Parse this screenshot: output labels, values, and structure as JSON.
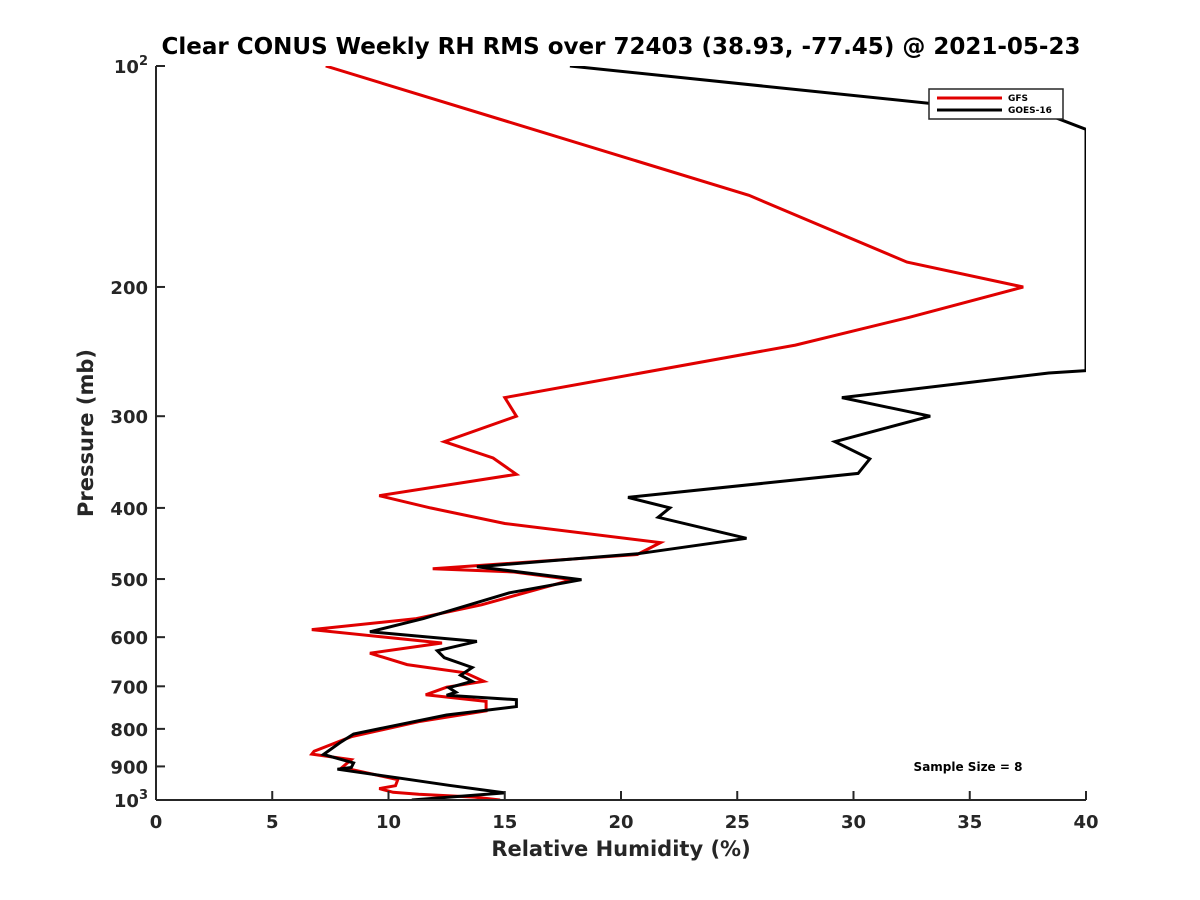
{
  "chart_data": {
    "type": "line",
    "title": "Clear CONUS Weekly RH RMS over 72403 (38.93, -77.45) @ 2021-05-23",
    "xlabel": "Relative Humidity (%)",
    "ylabel": "Pressure (mb)",
    "xlim": [
      0,
      40
    ],
    "ylim": [
      100,
      1000
    ],
    "y_scale": "log",
    "y_reversed": true,
    "x_ticks": [
      "0",
      "5",
      "10",
      "15",
      "20",
      "25",
      "30",
      "35",
      "40"
    ],
    "x_tick_values": [
      0,
      5,
      10,
      15,
      20,
      25,
      30,
      35,
      40
    ],
    "y_ticks": [
      {
        "value": 100,
        "base": "10",
        "exp": "2"
      },
      {
        "value": 200,
        "base": "200",
        "exp": ""
      },
      {
        "value": 300,
        "base": "300",
        "exp": ""
      },
      {
        "value": 400,
        "base": "400",
        "exp": ""
      },
      {
        "value": 500,
        "base": "500",
        "exp": ""
      },
      {
        "value": 600,
        "base": "600",
        "exp": ""
      },
      {
        "value": 700,
        "base": "700",
        "exp": ""
      },
      {
        "value": 800,
        "base": "800",
        "exp": ""
      },
      {
        "value": 900,
        "base": "900",
        "exp": ""
      },
      {
        "value": 1000,
        "base": "10",
        "exp": "3"
      }
    ],
    "legend_position": "top-right",
    "grid": false,
    "annotation": "Sample Size = 8",
    "series": [
      {
        "name": "GFS",
        "color": "#e00000",
        "points": [
          [
            7.3,
            100
          ],
          [
            25.5,
            150
          ],
          [
            32.3,
            185
          ],
          [
            37.3,
            200
          ],
          [
            32.4,
            220
          ],
          [
            27.5,
            240
          ],
          [
            15.0,
            283
          ],
          [
            15.5,
            300
          ],
          [
            12.4,
            325
          ],
          [
            14.5,
            342
          ],
          [
            15.5,
            360
          ],
          [
            9.6,
            385
          ],
          [
            11.8,
            400
          ],
          [
            15.0,
            420
          ],
          [
            21.7,
            446
          ],
          [
            20.7,
            463
          ],
          [
            11.9,
            484
          ],
          [
            15.4,
            489
          ],
          [
            17.9,
            501
          ],
          [
            14.0,
            542
          ],
          [
            11.2,
            566
          ],
          [
            6.7,
            586
          ],
          [
            12.3,
            611
          ],
          [
            9.2,
            631
          ],
          [
            10.8,
            654
          ],
          [
            13.3,
            671
          ],
          [
            14.1,
            689
          ],
          [
            12.5,
            702
          ],
          [
            11.6,
            719
          ],
          [
            14.2,
            734
          ],
          [
            14.2,
            756
          ],
          [
            11.3,
            782
          ],
          [
            8.4,
            820
          ],
          [
            6.8,
            858
          ],
          [
            6.7,
            866
          ],
          [
            8.4,
            881
          ],
          [
            8.0,
            903
          ],
          [
            10.4,
            938
          ],
          [
            10.3,
            956
          ],
          [
            9.6,
            965
          ],
          [
            10.2,
            976
          ],
          [
            11.3,
            982
          ],
          [
            13.7,
            991
          ],
          [
            14.8,
            1000
          ]
        ]
      },
      {
        "name": "GOES-16",
        "color": "#000000",
        "points": [
          [
            17.8,
            100
          ],
          [
            38.5,
            117
          ],
          [
            40.0,
            122
          ],
          [
            40.0,
            260
          ],
          [
            38.4,
            262
          ],
          [
            29.5,
            283
          ],
          [
            33.3,
            300
          ],
          [
            29.2,
            325
          ],
          [
            30.7,
            343
          ],
          [
            30.2,
            359
          ],
          [
            20.3,
            387
          ],
          [
            22.1,
            400
          ],
          [
            21.6,
            412
          ],
          [
            25.4,
            440
          ],
          [
            20.7,
            462
          ],
          [
            13.8,
            481
          ],
          [
            18.3,
            501
          ],
          [
            15.2,
            522
          ],
          [
            11.5,
            566
          ],
          [
            9.2,
            590
          ],
          [
            13.8,
            608
          ],
          [
            12.1,
            626
          ],
          [
            12.4,
            640
          ],
          [
            13.6,
            660
          ],
          [
            13.1,
            676
          ],
          [
            13.6,
            689
          ],
          [
            12.6,
            703
          ],
          [
            12.9,
            713
          ],
          [
            12.5,
            720
          ],
          [
            15.5,
            730
          ],
          [
            15.5,
            746
          ],
          [
            12.5,
            766
          ],
          [
            8.5,
            813
          ],
          [
            7.9,
            836
          ],
          [
            7.2,
            867
          ],
          [
            8.5,
            890
          ],
          [
            8.4,
            903
          ],
          [
            7.8,
            908
          ],
          [
            10.5,
            934
          ],
          [
            12.6,
            955
          ],
          [
            15.0,
            978
          ],
          [
            11.0,
            1000
          ]
        ]
      }
    ]
  }
}
